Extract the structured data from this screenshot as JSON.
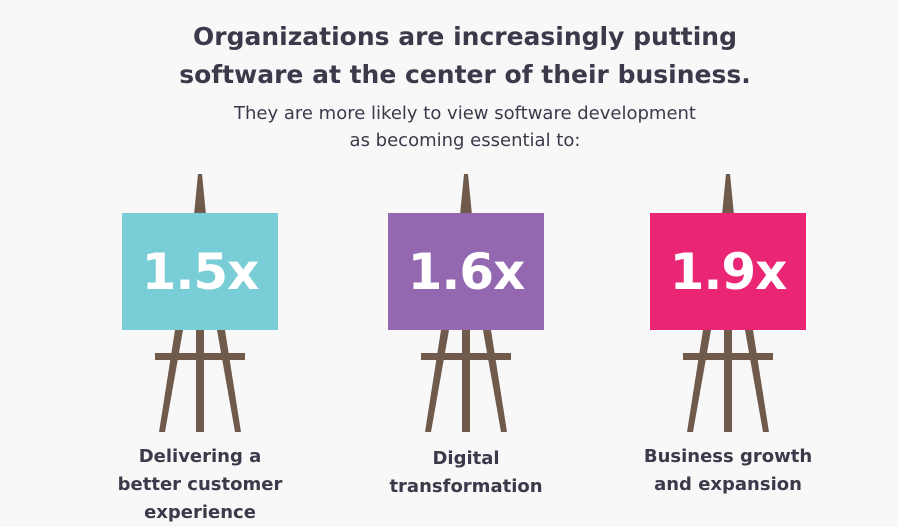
{
  "headline": {
    "line1": "Organizations are increasingly putting",
    "line2": "software at the center of their business."
  },
  "subhead": {
    "line1": "They are more likely to view software development",
    "line2": "as becoming essential to:"
  },
  "colors": {
    "text": "#3a3a4a",
    "easel_wood": "#6f5a4b",
    "background": "#f8f8f8"
  },
  "easels": [
    {
      "value": "1.5x",
      "color": "#79cdd6",
      "caption": [
        "Delivering a",
        "better customer",
        "experience"
      ]
    },
    {
      "value": "1.6x",
      "color": "#9467b1",
      "caption": [
        "Digital",
        "transformation"
      ]
    },
    {
      "value": "1.9x",
      "color": "#ea2674",
      "caption": [
        "Business growth",
        "and expansion"
      ]
    }
  ]
}
